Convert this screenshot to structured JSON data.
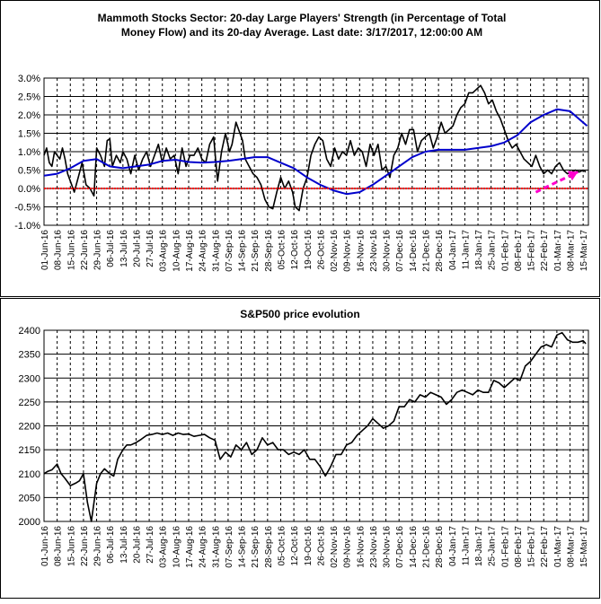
{
  "charts": [
    {
      "title_line1": "Mammoth Stocks Sector: 20-day Large Players' Strength (in Percentage of Total",
      "title_line2": "Money Flow) and its 20-day Average. Last date: 3/17/2017, 12:00:00 AM",
      "y_tick_labels": [
        "3.0%",
        "2.5%",
        "2.0%",
        "1.5%",
        "1.0%",
        "0.5%",
        "0.0%",
        "-0.5%",
        "-1.0%"
      ],
      "x_tick_labels": [
        "01-Jun-16",
        "08-Jun-16",
        "15-Jun-16",
        "22-Jun-16",
        "29-Jun-16",
        "06-Jul-16",
        "13-Jul-16",
        "20-Jul-16",
        "27-Jul-16",
        "03-Aug-16",
        "10-Aug-16",
        "17-Aug-16",
        "24-Aug-16",
        "31-Aug-16",
        "07-Sep-16",
        "14-Sep-16",
        "21-Sep-16",
        "28-Sep-16",
        "05-Oct-16",
        "12-Oct-16",
        "19-Oct-16",
        "26-Oct-16",
        "02-Nov-16",
        "09-Nov-16",
        "16-Nov-16",
        "23-Nov-16",
        "30-Nov-16",
        "07-Dec-16",
        "14-Dec-16",
        "21-Dec-16",
        "28-Dec-16",
        "04-Jan-17",
        "11-Jan-17",
        "18-Jan-17",
        "25-Jan-17",
        "01-Feb-17",
        "08-Feb-17",
        "15-Feb-17",
        "22-Feb-17",
        "01-Mar-17",
        "08-Mar-17",
        "15-Mar-17"
      ],
      "colors": {
        "strength": "#000000",
        "average": "#0000cc",
        "zero_line": "#ff0000",
        "arrow": "#ff00cc"
      }
    },
    {
      "title": "S&P500 price evolution",
      "y_tick_labels": [
        "2400",
        "2350",
        "2300",
        "2250",
        "2200",
        "2150",
        "2100",
        "2050",
        "2000"
      ],
      "x_tick_labels": [
        "01-Jun-16",
        "08-Jun-16",
        "15-Jun-16",
        "22-Jun-16",
        "29-Jun-16",
        "06-Jul-16",
        "13-Jul-16",
        "20-Jul-16",
        "27-Jul-16",
        "03-Aug-16",
        "10-Aug-16",
        "17-Aug-16",
        "24-Aug-16",
        "31-Aug-16",
        "07-Sep-16",
        "14-Sep-16",
        "21-Sep-16",
        "28-Sep-16",
        "05-Oct-16",
        "12-Oct-16",
        "19-Oct-16",
        "26-Oct-16",
        "02-Nov-16",
        "09-Nov-16",
        "16-Nov-16",
        "23-Nov-16",
        "30-Nov-16",
        "07-Dec-16",
        "14-Dec-16",
        "21-Dec-16",
        "28-Dec-16",
        "04-Jan-17",
        "11-Jan-17",
        "18-Jan-17",
        "25-Jan-17",
        "01-Feb-17",
        "08-Feb-17",
        "15-Feb-17",
        "22-Feb-17",
        "01-Mar-17",
        "08-Mar-17",
        "15-Mar-17"
      ],
      "colors": {
        "price": "#000000"
      }
    }
  ],
  "chart_data": [
    {
      "type": "line",
      "title": "Mammoth Stocks Sector: 20-day Large Players' Strength (in Percentage of Total Money Flow) and its 20-day Average. Last date: 3/17/2017, 12:00:00 AM",
      "ylim": [
        -1.0,
        3.0
      ],
      "y_unit": "%",
      "grid": true,
      "legend": "none",
      "categories": [
        "01-Jun-16",
        "08-Jun-16",
        "15-Jun-16",
        "22-Jun-16",
        "29-Jun-16",
        "06-Jul-16",
        "13-Jul-16",
        "20-Jul-16",
        "27-Jul-16",
        "03-Aug-16",
        "10-Aug-16",
        "17-Aug-16",
        "24-Aug-16",
        "31-Aug-16",
        "07-Sep-16",
        "14-Sep-16",
        "21-Sep-16",
        "28-Sep-16",
        "05-Oct-16",
        "12-Oct-16",
        "19-Oct-16",
        "26-Oct-16",
        "02-Nov-16",
        "09-Nov-16",
        "16-Nov-16",
        "23-Nov-16",
        "30-Nov-16",
        "07-Dec-16",
        "14-Dec-16",
        "21-Dec-16",
        "28-Dec-16",
        "04-Jan-17",
        "11-Jan-17",
        "18-Jan-17",
        "25-Jan-17",
        "01-Feb-17",
        "08-Feb-17",
        "15-Feb-17",
        "22-Feb-17",
        "01-Mar-17",
        "08-Mar-17",
        "15-Mar-17"
      ],
      "x_range": [
        0,
        41.4
      ],
      "series": [
        {
          "x": [
            0,
            0.2,
            0.4,
            0.6,
            0.8,
            1.0,
            1.2,
            1.4,
            1.6,
            1.8,
            2.0,
            2.3,
            2.6,
            2.9,
            3.2,
            3.5,
            3.8,
            4.0,
            4.3,
            4.6,
            4.8,
            5.0,
            5.2,
            5.5,
            5.8,
            6.0,
            6.3,
            6.6,
            6.9,
            7.2,
            7.5,
            7.8,
            8.1,
            8.4,
            8.7,
            9.0,
            9.3,
            9.6,
            9.9,
            10.2,
            10.5,
            10.8,
            11.1,
            11.4,
            11.7,
            12.0,
            12.3,
            12.6,
            12.9,
            13.2,
            13.5,
            13.8,
            14.1,
            14.3,
            14.6,
            14.9,
            15.1,
            15.3,
            15.6,
            15.9,
            16.2,
            16.5,
            16.8,
            17.1,
            17.4,
            17.7,
            18.0,
            18.3,
            18.6,
            18.9,
            19.1,
            19.4,
            19.7,
            20.0,
            20.3,
            20.6,
            20.9,
            21.2,
            21.5,
            21.8,
            22.1,
            22.4,
            22.7,
            23.0,
            23.3,
            23.6,
            23.9,
            24.2,
            24.5,
            24.8,
            25.1,
            25.4,
            25.7,
            26.0,
            26.3,
            26.6,
            26.9,
            27.2,
            27.5,
            27.8,
            28.1,
            28.4,
            28.7,
            29.0,
            29.3,
            29.6,
            29.9,
            30.2,
            30.5,
            30.8,
            31.1,
            31.4,
            31.7,
            32.0,
            32.3,
            32.6,
            32.9,
            33.2,
            33.5,
            33.8,
            34.1,
            34.4,
            34.7,
            35.0,
            35.3,
            35.6,
            35.9,
            36.2,
            36.5,
            36.8,
            37.1,
            37.4,
            37.7,
            38.0,
            38.3,
            38.6,
            38.9,
            39.2,
            39.5,
            39.8,
            40.1,
            40.4,
            40.7,
            41.0,
            41.2
          ],
          "values": [
            0.9,
            1.1,
            0.7,
            0.6,
            1.0,
            0.9,
            0.8,
            1.1,
            0.8,
            0.4,
            0.2,
            -0.1,
            0.3,
            0.7,
            0.1,
            0.0,
            -0.2,
            1.1,
            0.9,
            0.6,
            1.3,
            1.35,
            0.6,
            0.9,
            0.7,
            1.0,
            0.8,
            0.4,
            0.9,
            0.5,
            0.8,
            1.0,
            0.6,
            0.9,
            1.2,
            0.7,
            1.1,
            0.8,
            0.9,
            0.4,
            1.1,
            0.6,
            0.9,
            0.9,
            1.1,
            0.8,
            0.7,
            1.2,
            1.4,
            0.2,
            1.0,
            1.5,
            1.0,
            1.2,
            1.8,
            1.5,
            1.3,
            0.8,
            0.6,
            0.4,
            0.3,
            0.1,
            -0.3,
            -0.5,
            -0.55,
            -0.1,
            0.3,
            0.0,
            0.2,
            -0.1,
            -0.5,
            -0.6,
            0.0,
            0.3,
            0.9,
            1.2,
            1.4,
            1.3,
            0.8,
            0.6,
            1.1,
            0.8,
            1.0,
            0.9,
            1.3,
            0.9,
            1.1,
            1.0,
            0.6,
            1.2,
            0.9,
            1.2,
            0.5,
            0.6,
            0.3,
            0.9,
            1.1,
            1.5,
            1.2,
            1.6,
            1.6,
            1.0,
            1.3,
            1.4,
            1.5,
            1.1,
            1.4,
            1.8,
            1.5,
            1.6,
            1.7,
            2.0,
            2.2,
            2.3,
            2.6,
            2.6,
            2.7,
            2.8,
            2.6,
            2.3,
            2.4,
            2.1,
            1.9,
            1.6,
            1.3,
            1.1,
            1.2,
            1.0,
            0.8,
            0.7,
            0.6,
            0.9,
            0.6,
            0.4,
            0.5,
            0.4,
            0.6,
            0.7,
            0.5,
            0.4,
            0.45,
            0.5,
            0.45,
            0.5,
            0.45
          ]
        },
        {
          "x": [
            0,
            1,
            2,
            3,
            4,
            5,
            6,
            7,
            8,
            9,
            10,
            11,
            12,
            13,
            14,
            15,
            16,
            17,
            18,
            19,
            20,
            21,
            22,
            23,
            24,
            25,
            26,
            27,
            28,
            29,
            30,
            31,
            32,
            33,
            34,
            35,
            36,
            37,
            38,
            39,
            40,
            41.3
          ],
          "values": [
            0.35,
            0.4,
            0.55,
            0.75,
            0.8,
            0.6,
            0.55,
            0.6,
            0.65,
            0.75,
            0.78,
            0.72,
            0.7,
            0.72,
            0.75,
            0.8,
            0.85,
            0.85,
            0.7,
            0.55,
            0.3,
            0.1,
            -0.05,
            -0.15,
            -0.1,
            0.1,
            0.35,
            0.6,
            0.85,
            1.0,
            1.05,
            1.05,
            1.05,
            1.1,
            1.15,
            1.25,
            1.45,
            1.8,
            2.0,
            2.15,
            2.1,
            1.7
          ]
        }
      ],
      "zero_line": 0.0,
      "annotation": "arrow pointing up-right toward the last data point"
    },
    {
      "type": "line",
      "title": "S&P500 price evolution",
      "ylim": [
        2000,
        2400
      ],
      "grid": true,
      "legend": "none",
      "categories": [
        "01-Jun-16",
        "08-Jun-16",
        "15-Jun-16",
        "22-Jun-16",
        "29-Jun-16",
        "06-Jul-16",
        "13-Jul-16",
        "20-Jul-16",
        "27-Jul-16",
        "03-Aug-16",
        "10-Aug-16",
        "17-Aug-16",
        "24-Aug-16",
        "31-Aug-16",
        "07-Sep-16",
        "14-Sep-16",
        "21-Sep-16",
        "28-Sep-16",
        "05-Oct-16",
        "12-Oct-16",
        "19-Oct-16",
        "26-Oct-16",
        "02-Nov-16",
        "09-Nov-16",
        "16-Nov-16",
        "23-Nov-16",
        "30-Nov-16",
        "07-Dec-16",
        "14-Dec-16",
        "21-Dec-16",
        "28-Dec-16",
        "04-Jan-17",
        "11-Jan-17",
        "18-Jan-17",
        "25-Jan-17",
        "01-Feb-17",
        "08-Feb-17",
        "15-Feb-17",
        "22-Feb-17",
        "01-Mar-17",
        "08-Mar-17",
        "15-Mar-17"
      ],
      "x_range": [
        0,
        41.4
      ],
      "series": [
        {
          "x": [
            0,
            0.3,
            0.6,
            1.0,
            1.3,
            1.6,
            2.0,
            2.4,
            2.7,
            3.0,
            3.3,
            3.6,
            4.0,
            4.3,
            4.6,
            5.0,
            5.3,
            5.6,
            6.0,
            6.3,
            6.6,
            7.0,
            7.4,
            7.8,
            8.2,
            8.6,
            9.0,
            9.4,
            9.8,
            10.2,
            10.6,
            11.0,
            11.4,
            11.8,
            12.2,
            12.6,
            13.0,
            13.4,
            13.8,
            14.2,
            14.6,
            15.0,
            15.4,
            15.8,
            16.2,
            16.6,
            17.0,
            17.4,
            17.8,
            18.2,
            18.6,
            19.0,
            19.4,
            19.8,
            20.2,
            20.6,
            21.0,
            21.4,
            21.8,
            22.2,
            22.6,
            23.0,
            23.4,
            23.8,
            24.2,
            24.6,
            25.0,
            25.4,
            25.8,
            26.2,
            26.6,
            27.0,
            27.4,
            27.8,
            28.2,
            28.6,
            29.0,
            29.4,
            29.8,
            30.2,
            30.6,
            31.0,
            31.4,
            31.8,
            32.2,
            32.6,
            33.0,
            33.4,
            33.8,
            34.2,
            34.6,
            35.0,
            35.4,
            35.8,
            36.2,
            36.6,
            37.0,
            37.4,
            37.8,
            38.2,
            38.6,
            39.0,
            39.4,
            39.8,
            40.2,
            40.6,
            41.0,
            41.2
          ],
          "values": [
            2100,
            2105,
            2108,
            2120,
            2100,
            2090,
            2075,
            2080,
            2085,
            2100,
            2040,
            2000,
            2080,
            2100,
            2110,
            2100,
            2095,
            2130,
            2150,
            2160,
            2160,
            2165,
            2172,
            2180,
            2182,
            2185,
            2182,
            2185,
            2180,
            2185,
            2182,
            2183,
            2178,
            2180,
            2182,
            2175,
            2170,
            2130,
            2145,
            2135,
            2160,
            2150,
            2165,
            2140,
            2150,
            2175,
            2160,
            2165,
            2150,
            2150,
            2140,
            2145,
            2140,
            2150,
            2130,
            2130,
            2115,
            2095,
            2115,
            2140,
            2140,
            2160,
            2165,
            2180,
            2190,
            2200,
            2215,
            2205,
            2195,
            2200,
            2210,
            2240,
            2240,
            2255,
            2250,
            2265,
            2260,
            2270,
            2265,
            2260,
            2245,
            2255,
            2270,
            2275,
            2270,
            2265,
            2275,
            2270,
            2270,
            2295,
            2290,
            2280,
            2290,
            2300,
            2295,
            2325,
            2335,
            2350,
            2365,
            2370,
            2365,
            2390,
            2395,
            2380,
            2375,
            2375,
            2378,
            2372
          ]
        }
      ]
    }
  ]
}
